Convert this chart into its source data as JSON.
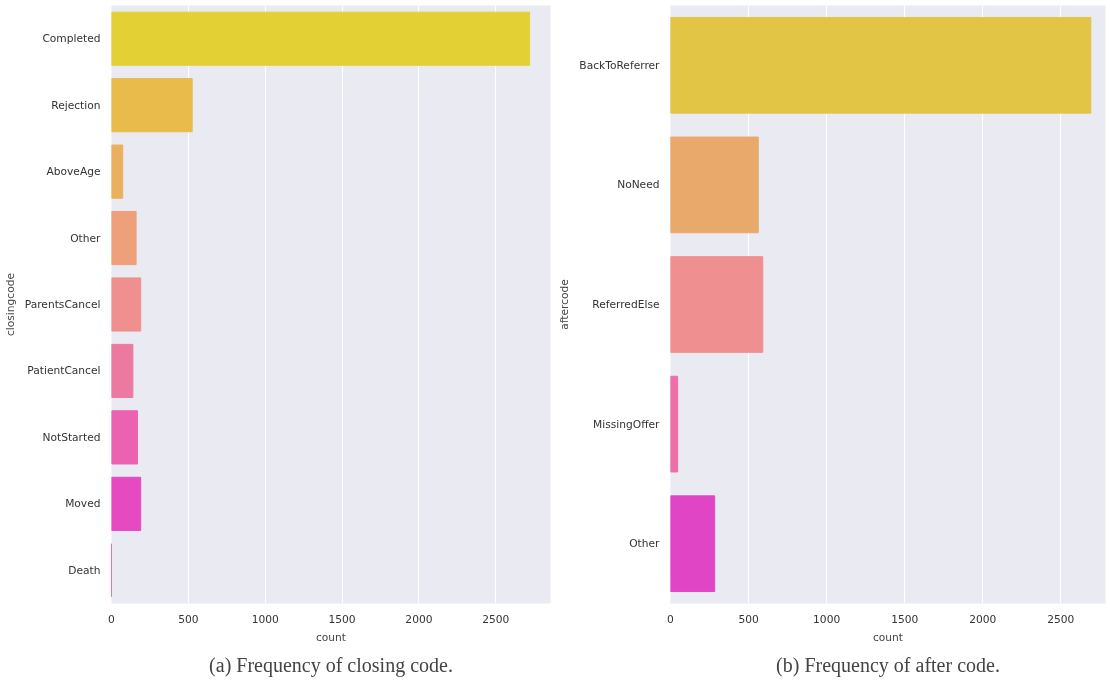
{
  "chart_data": [
    {
      "type": "bar",
      "orientation": "horizontal",
      "categories": [
        "Completed",
        "Rejection",
        "AboveAge",
        "Other",
        "ParentsCancel",
        "PatientCancel",
        "NotStarted",
        "Moved",
        "Death"
      ],
      "values": [
        2720,
        525,
        73,
        160,
        190,
        139,
        169,
        190,
        0
      ],
      "colors": [
        "#e3d035",
        "#e8bb4a",
        "#eab05e",
        "#eda07a",
        "#ef8f8f",
        "#ec7aa0",
        "#ea62b0",
        "#e54ac0",
        "#e040c8"
      ],
      "xlim": [
        0,
        2856
      ],
      "xticks": [
        0,
        500,
        1000,
        1500,
        2000,
        2500
      ],
      "xlabel": "count",
      "ylabel": "closingcode",
      "grid": "x",
      "annotations": [
        "(a) Frequency of closing code."
      ]
    },
    {
      "type": "bar",
      "orientation": "horizontal",
      "categories": [
        "BackToReferrer",
        "NoNeed",
        "ReferredElse",
        "MissingOffer",
        "Other"
      ],
      "values": [
        2692,
        562,
        591,
        46,
        283
      ],
      "colors": [
        "#e2c545",
        "#e8a96a",
        "#ef8f8f",
        "#ec6fa8",
        "#e045c6"
      ],
      "xlim": [
        0,
        2786
      ],
      "xticks": [
        0,
        500,
        1000,
        1500,
        2000,
        2500
      ],
      "xlabel": "count",
      "ylabel": "aftercode",
      "grid": "x",
      "annotations": [
        "(b) Frequency of after code."
      ]
    }
  ]
}
